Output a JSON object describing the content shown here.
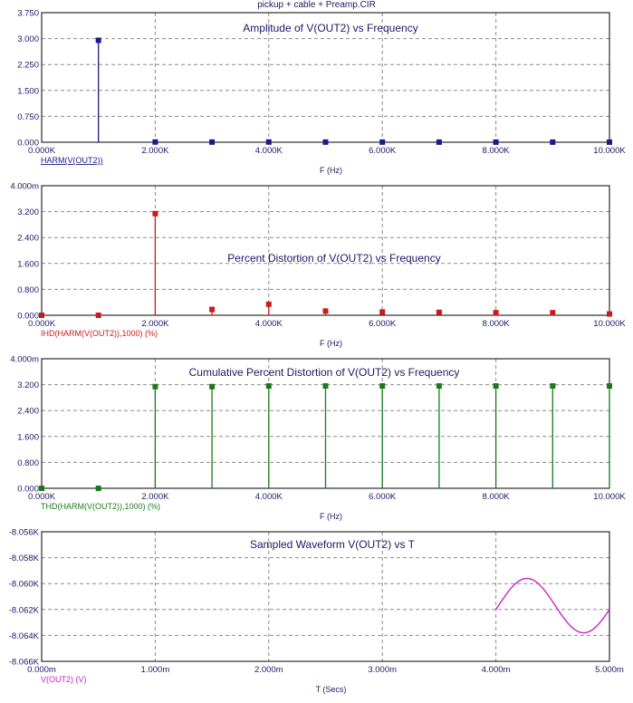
{
  "window": {
    "title": "pickup + cable + Preamp.CIR"
  },
  "colors": {
    "background": "#ffffff",
    "frame": "#000000",
    "grid": "#8c8c8c",
    "text": "#1a1a66"
  },
  "chart_data": [
    {
      "id": "amplitude",
      "type": "stem",
      "title": "Amplitude of V(OUT2) vs Frequency",
      "xlabel": "F (Hz)",
      "legend": "HARM(V(OUT2))",
      "color": "#1a1a8c",
      "xlim": [
        0,
        10000
      ],
      "ylim": [
        0,
        3.75
      ],
      "xticks": [
        0,
        2000,
        4000,
        6000,
        8000,
        10000
      ],
      "xtick_labels": [
        "0.000K",
        "2.000K",
        "4.000K",
        "6.000K",
        "8.000K",
        "10.000K"
      ],
      "yticks": [
        0,
        0.75,
        1.5,
        2.25,
        3.0,
        3.75
      ],
      "ytick_labels": [
        "0.000",
        "0.750",
        "1.500",
        "2.250",
        "3.000",
        "3.750"
      ],
      "x": [
        1000,
        2000,
        3000,
        4000,
        5000,
        6000,
        7000,
        8000,
        9000,
        10000
      ],
      "y": [
        2.95,
        0.006,
        0.005,
        0.006,
        0.004,
        0.004,
        0.003,
        0.003,
        0.003,
        0.003
      ]
    },
    {
      "id": "ihd",
      "type": "stem",
      "title": "Percent Distortion of V(OUT2) vs Frequency",
      "xlabel": "F (Hz)",
      "legend": "IHD(HARM(V(OUT2)),1000) (%)",
      "color": "#cc1a1a",
      "xlim": [
        0,
        10000
      ],
      "ylim": [
        0,
        4.0
      ],
      "yunit": "m",
      "xticks": [
        0,
        2000,
        4000,
        6000,
        8000,
        10000
      ],
      "xtick_labels": [
        "0.000K",
        "2.000K",
        "4.000K",
        "6.000K",
        "8.000K",
        "10.000K"
      ],
      "yticks": [
        0,
        0.8,
        1.6,
        2.4,
        3.2,
        4.0
      ],
      "ytick_labels": [
        "0.000",
        "0.800",
        "1.600",
        "2.400",
        "3.200",
        "4.000m"
      ],
      "x": [
        0,
        1000,
        2000,
        3000,
        4000,
        5000,
        6000,
        7000,
        8000,
        9000,
        10000
      ],
      "y": [
        0.0,
        0.0,
        3.14,
        0.18,
        0.34,
        0.13,
        0.1,
        0.09,
        0.08,
        0.08,
        0.04
      ]
    },
    {
      "id": "thd",
      "type": "stem",
      "title": "Cumulative Percent Distortion of V(OUT2) vs Frequency",
      "xlabel": "F (Hz)",
      "legend": "THD(HARM(V(OUT2)),1000) (%)",
      "color": "#1a7a1a",
      "xlim": [
        0,
        10000
      ],
      "ylim": [
        0,
        4.0
      ],
      "yunit": "m",
      "xticks": [
        0,
        2000,
        4000,
        6000,
        8000,
        10000
      ],
      "xtick_labels": [
        "0.000K",
        "2.000K",
        "4.000K",
        "6.000K",
        "8.000K",
        "10.000K"
      ],
      "yticks": [
        0,
        0.8,
        1.6,
        2.4,
        3.2,
        4.0
      ],
      "ytick_labels": [
        "0.000",
        "0.800",
        "1.600",
        "2.400",
        "3.200",
        "4.000m"
      ],
      "x": [
        0,
        1000,
        2000,
        3000,
        4000,
        5000,
        6000,
        7000,
        8000,
        9000,
        10000
      ],
      "y": [
        0.0,
        0.0,
        3.14,
        3.14,
        3.16,
        3.16,
        3.16,
        3.16,
        3.16,
        3.16,
        3.16
      ]
    },
    {
      "id": "waveform",
      "type": "line",
      "title": "Sampled Waveform  V(OUT2) vs T",
      "xlabel": "T (Secs)",
      "legend": "V(OUT2) (V)",
      "color": "#cc22cc",
      "xlim": [
        0,
        5.0
      ],
      "ylim": [
        -8.066,
        -8.056
      ],
      "xunit": "ms",
      "xticks": [
        0,
        1,
        2,
        3,
        4,
        5
      ],
      "xtick_labels": [
        "0.000m",
        "1.000m",
        "2.000m",
        "3.000m",
        "4.000m",
        "5.000m"
      ],
      "yticks": [
        -8.066,
        -8.064,
        -8.062,
        -8.06,
        -8.058,
        -8.056
      ],
      "ytick_labels": [
        "-8.066K",
        "-8.064K",
        "-8.062K",
        "-8.060K",
        "-8.058K",
        "-8.056K"
      ],
      "wave": {
        "start": 4.0,
        "end": 5.0,
        "center": -8.0617,
        "amplitude": 0.0021,
        "period": 1.0,
        "phase_start_value": -8.062
      }
    }
  ]
}
